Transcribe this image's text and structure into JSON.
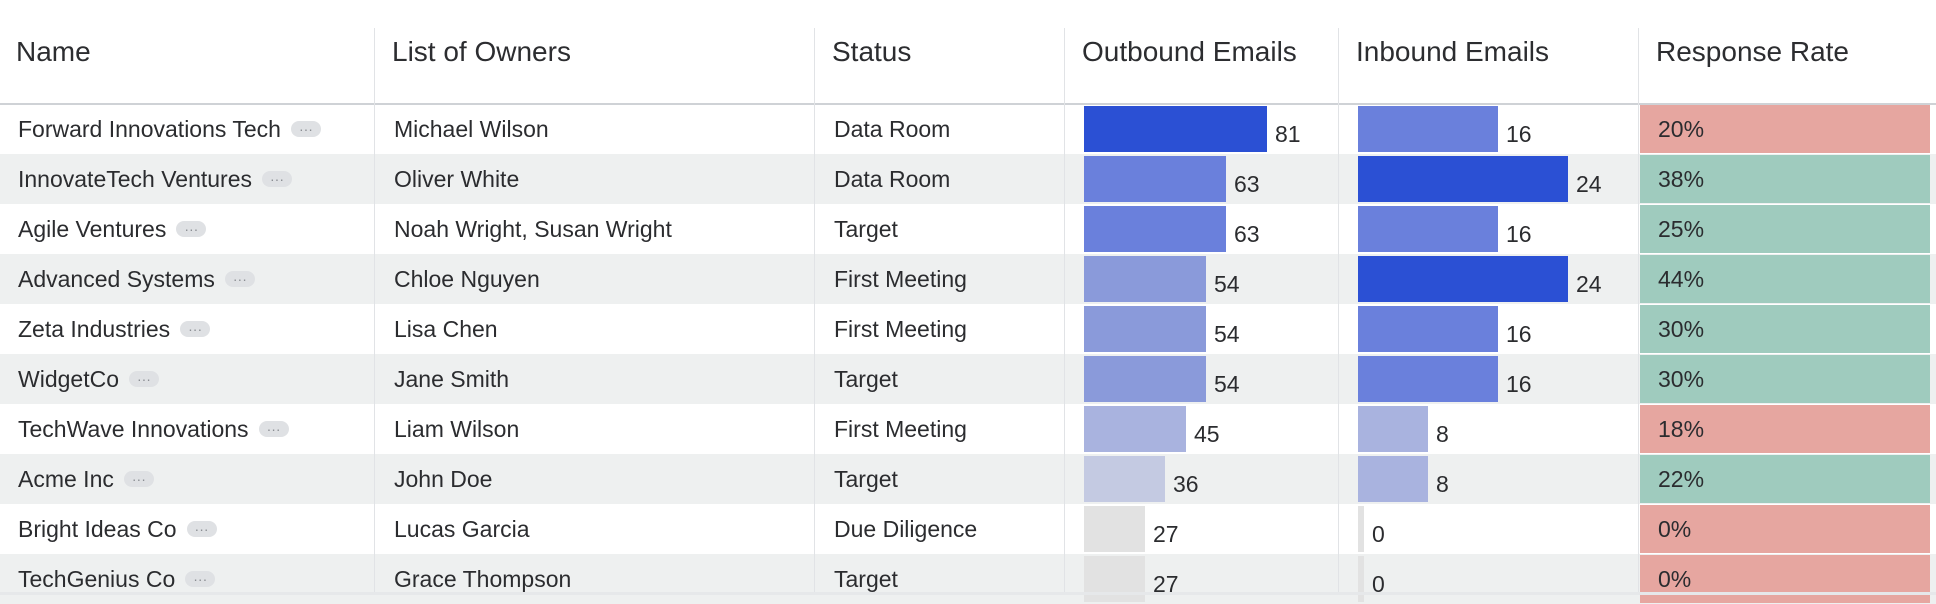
{
  "columns": [
    {
      "label": "Name"
    },
    {
      "label": "List of Owners"
    },
    {
      "label": "Status"
    },
    {
      "label": "Outbound Emails"
    },
    {
      "label": "Inbound Emails"
    },
    {
      "label": "Response Rate"
    }
  ],
  "more_glyph": "···",
  "colors": {
    "bar_dark": "#2b50d4",
    "bar_mid": "#6a80dc",
    "bar_light": "#8a9ada",
    "bar_pale": "#a9b3df",
    "bar_faint": "#c4cae2",
    "bar_none": "#e2e2e2",
    "rate_low": "#e6a6a0",
    "rate_high": "#9fcbbe"
  },
  "rows": [
    {
      "name": "Forward Innovations Tech",
      "owners": "Michael Wilson",
      "status": "Data Room",
      "outbound": 81,
      "outbound_text": "81",
      "inbound": 16,
      "inbound_text": "16",
      "rate": "20%",
      "rate_level": "low"
    },
    {
      "name": "InnovateTech Ventures",
      "owners": "Oliver White",
      "status": "Data Room",
      "outbound": 63,
      "outbound_text": "63",
      "inbound": 24,
      "inbound_text": "24",
      "rate": "38%",
      "rate_level": "high"
    },
    {
      "name": "Agile Ventures",
      "owners": "Noah Wright, Susan Wright",
      "status": "Target",
      "outbound": 63,
      "outbound_text": "63",
      "inbound": 16,
      "inbound_text": "16",
      "rate": "25%",
      "rate_level": "high"
    },
    {
      "name": "Advanced Systems",
      "owners": "Chloe Nguyen",
      "status": "First Meeting",
      "outbound": 54,
      "outbound_text": "54",
      "inbound": 24,
      "inbound_text": "24",
      "rate": "44%",
      "rate_level": "high"
    },
    {
      "name": "Zeta Industries",
      "owners": "Lisa Chen",
      "status": "First Meeting",
      "outbound": 54,
      "outbound_text": "54",
      "inbound": 16,
      "inbound_text": "16",
      "rate": "30%",
      "rate_level": "high"
    },
    {
      "name": "WidgetCo",
      "owners": "Jane Smith",
      "status": "Target",
      "outbound": 54,
      "outbound_text": "54",
      "inbound": 16,
      "inbound_text": "16",
      "rate": "30%",
      "rate_level": "high"
    },
    {
      "name": "TechWave Innovations",
      "owners": "Liam Wilson",
      "status": "First Meeting",
      "outbound": 45,
      "outbound_text": "45",
      "inbound": 8,
      "inbound_text": "8",
      "rate": "18%",
      "rate_level": "low"
    },
    {
      "name": "Acme Inc",
      "owners": "John Doe",
      "status": "Target",
      "outbound": 36,
      "outbound_text": "36",
      "inbound": 8,
      "inbound_text": "8",
      "rate": "22%",
      "rate_level": "high"
    },
    {
      "name": "Bright Ideas Co",
      "owners": "Lucas Garcia",
      "status": "Due Diligence",
      "outbound": 27,
      "outbound_text": "27",
      "inbound": 0,
      "inbound_text": "0",
      "rate": "0%",
      "rate_level": "low"
    },
    {
      "name": "TechGenius Co",
      "owners": "Grace Thompson",
      "status": "Target",
      "outbound": 27,
      "outbound_text": "27",
      "inbound": 0,
      "inbound_text": "0",
      "rate": "0%",
      "rate_level": "low"
    }
  ]
}
